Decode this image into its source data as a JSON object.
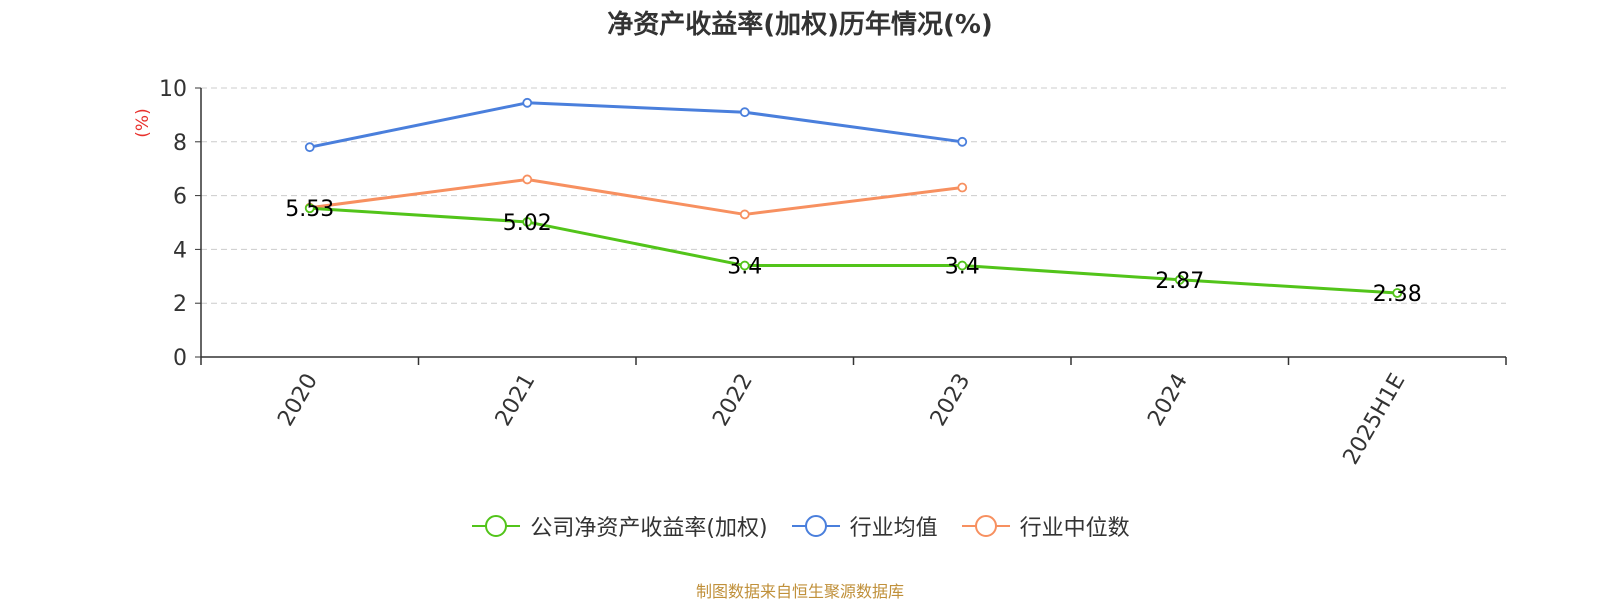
{
  "title": "净资产收益率(加权)历年情况(%)",
  "source_text": "制图数据来自恒生聚源数据库",
  "colors": {
    "company": "#52c41a",
    "industry_avg": "#4a7fdc",
    "industry_median": "#f79060",
    "axis": "#333333",
    "grid": "#cccccc",
    "ylabel": "#e8302c"
  },
  "chart_data": {
    "type": "line",
    "title": "净资产收益率(加权)历年情况(%)",
    "xlabel": "",
    "ylabel": "(%)",
    "categories": [
      "2020",
      "2021",
      "2022",
      "2023",
      "2024",
      "2025H1E"
    ],
    "ylim": [
      0,
      10
    ],
    "yticks": [
      0,
      2,
      4,
      6,
      8,
      10
    ],
    "grid": true,
    "legend_position": "bottom",
    "series": [
      {
        "name": "公司净资产收益率(加权)",
        "values": [
          5.53,
          5.02,
          3.4,
          3.4,
          2.87,
          2.38
        ],
        "labels": [
          "5.53",
          "5.02",
          "3.4",
          "3.4",
          "2.87",
          "2.38"
        ]
      },
      {
        "name": "行业均值",
        "values": [
          7.8,
          9.45,
          9.1,
          8.0,
          null,
          null
        ]
      },
      {
        "name": "行业中位数",
        "values": [
          5.55,
          6.6,
          5.3,
          6.3,
          null,
          null
        ]
      }
    ]
  }
}
